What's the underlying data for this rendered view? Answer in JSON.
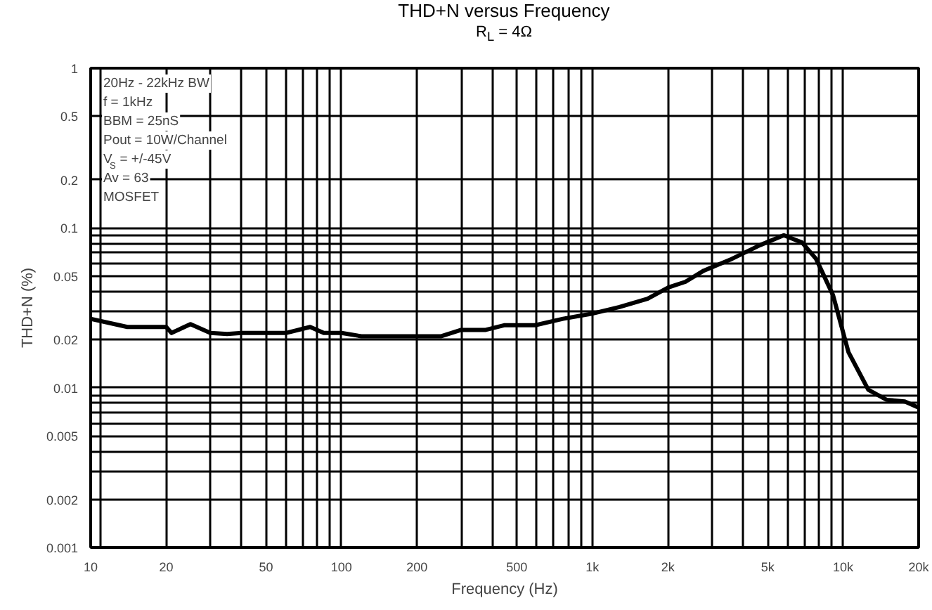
{
  "chart_data": {
    "type": "line",
    "title": "THD+N versus Frequency",
    "subtitle": "R$_{L}$ = 4Ω",
    "xlabel": "Frequency (Hz)",
    "ylabel": "THD+N (%)",
    "log": "xy",
    "grid": true,
    "marker": "none",
    "line_style": "solid",
    "xlim": [
      10,
      20000
    ],
    "ylim": [
      0.001,
      1
    ],
    "xticks": [
      10,
      {
        "value": 11,
        "label": null
      },
      20,
      {
        "value": 30,
        "label": null
      },
      {
        "value": 40,
        "label": null
      },
      50,
      {
        "value": 60,
        "label": null
      },
      {
        "value": 70,
        "label": null
      },
      {
        "value": 80,
        "label": null
      },
      {
        "value": 90,
        "label": null
      },
      100,
      200,
      {
        "value": 300,
        "label": null
      },
      {
        "value": 400,
        "label": null
      },
      500,
      {
        "value": 600,
        "label": null
      },
      {
        "value": 700,
        "label": null
      },
      {
        "value": 800,
        "label": null
      },
      {
        "value": 900,
        "label": null
      },
      {
        "value": 1000,
        "label": "1k"
      },
      {
        "value": 2000,
        "label": "2k"
      },
      {
        "value": 3000,
        "label": null
      },
      {
        "value": 4000,
        "label": null
      },
      {
        "value": 5000,
        "label": "5k"
      },
      {
        "value": 6000,
        "label": null
      },
      {
        "value": 7000,
        "label": null
      },
      {
        "value": 8000,
        "label": null
      },
      {
        "value": 9000,
        "label": null
      },
      {
        "value": 10000,
        "label": "10k"
      },
      {
        "value": 20000,
        "label": "20k"
      }
    ],
    "yticks": [
      0.001,
      0.002,
      {
        "value": 0.003,
        "label": null
      },
      {
        "value": 0.004,
        "label": null
      },
      0.005,
      {
        "value": 0.006,
        "label": null
      },
      {
        "value": 0.007,
        "label": null
      },
      {
        "value": 0.008,
        "label": null
      },
      {
        "value": 0.009,
        "label": null
      },
      0.01,
      0.02,
      {
        "value": 0.03,
        "label": null
      },
      {
        "value": 0.04,
        "label": null
      },
      0.05,
      {
        "value": 0.06,
        "label": null
      },
      {
        "value": 0.07,
        "label": null
      },
      {
        "value": 0.08,
        "label": null
      },
      {
        "value": 0.09,
        "label": null
      },
      0.1,
      0.2,
      0.5,
      1
    ],
    "annotations": [
      "20Hz - 22kHz BW",
      "f = 1kHz",
      "BBM = 25nS",
      "Pout = 10W/Channel",
      "V$_{S}$ = +/-45V",
      "Av = 63",
      "MOSFET"
    ],
    "series": [
      {
        "color": "#000000",
        "x": [
          10,
          14,
          20,
          21,
          25,
          30,
          35,
          40,
          60,
          75,
          85,
          100,
          120,
          250,
          300,
          376,
          445,
          590,
          764,
          990,
          1283,
          1660,
          2014,
          2350,
          2780,
          3600,
          4660,
          5800,
          6860,
          7800,
          9110,
          10500,
          12600,
          14900,
          17600,
          20000
        ],
        "values": [
          0.027,
          0.024,
          0.024,
          0.022,
          0.025,
          0.022,
          0.0217,
          0.022,
          0.022,
          0.024,
          0.022,
          0.022,
          0.021,
          0.021,
          0.023,
          0.023,
          0.0246,
          0.0246,
          0.027,
          0.029,
          0.032,
          0.036,
          0.0425,
          0.046,
          0.054,
          0.064,
          0.078,
          0.09,
          0.081,
          0.064,
          0.038,
          0.0167,
          0.0097,
          0.0084,
          0.0082,
          0.0075
        ]
      }
    ]
  }
}
